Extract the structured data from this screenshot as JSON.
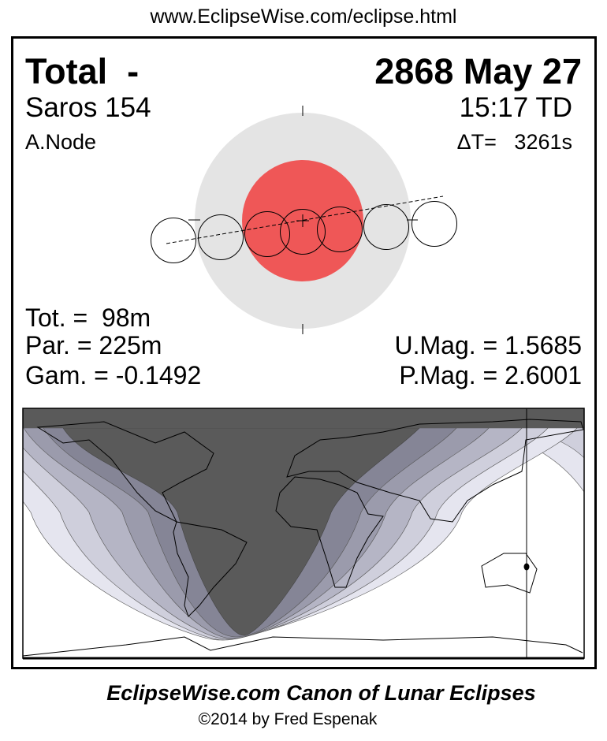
{
  "header": {
    "url": "www.EclipseWise.com/eclipse.html"
  },
  "eclipse": {
    "type": "Total  -",
    "date": "2868 May 27",
    "saros": "Saros 154",
    "time": "15:17 TD",
    "node": "A.Node",
    "delta_t": "ΔT=   3261s"
  },
  "stats": {
    "totality": "Tot. =  98m",
    "partial": "Par. = 225m",
    "gamma": "Gam. = -0.1492",
    "umbral_mag": "U.Mag. = 1.5685",
    "penumbral_mag": "P.Mag. = 2.6001"
  },
  "colors": {
    "penumbra": "#e4e4e4",
    "umbra": "#ef5757",
    "map_night": "#5a5a5a",
    "map_bands": [
      "#858596",
      "#9b9bac",
      "#b5b5c5",
      "#cfcfdc",
      "#e5e5ef"
    ]
  },
  "footer": {
    "title": "EclipseWise.com Canon of Lunar Eclipses",
    "copyright": "©2014 by Fred Espenak"
  }
}
